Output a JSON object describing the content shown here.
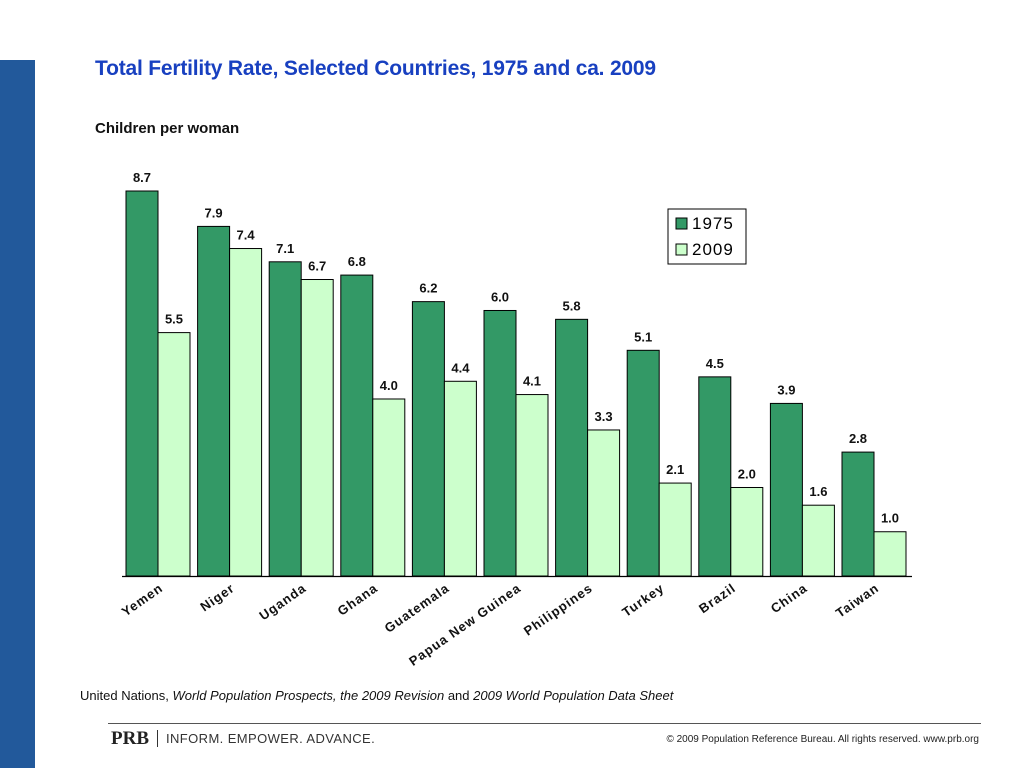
{
  "colors": {
    "side_bar": "#22599b",
    "title": "#1840c0",
    "series_1975": "#339966",
    "series_2009": "#ccffcc"
  },
  "title": "Total Fertility Rate, Selected Countries, 1975 and ca. 2009",
  "subtitle": "Children per woman",
  "chart_data": {
    "type": "bar",
    "title": "Total Fertility Rate, Selected Countries, 1975 and ca. 2009",
    "ylabel": "Children per woman",
    "xlabel": "",
    "categories": [
      "Yemen",
      "Niger",
      "Uganda",
      "Ghana",
      "Guatemala",
      "Papua New Guinea",
      "Philippines",
      "Turkey",
      "Brazil",
      "China",
      "Taiwan"
    ],
    "series": [
      {
        "name": "1975",
        "values": [
          8.7,
          7.9,
          7.1,
          6.8,
          6.2,
          6.0,
          5.8,
          5.1,
          4.5,
          3.9,
          2.8
        ]
      },
      {
        "name": "2009",
        "values": [
          5.5,
          7.4,
          6.7,
          4.0,
          4.4,
          4.1,
          3.3,
          2.1,
          2.0,
          1.6,
          1.0
        ]
      }
    ],
    "ylim": [
      0,
      8.7
    ],
    "grid": false,
    "legend": "top-right",
    "data_labels": true,
    "value_format": "one decimal"
  },
  "source": {
    "prefix": "United Nations, ",
    "italic_1": "World Population Prospects, the 2009 Revision",
    "middle": " and ",
    "italic_2": "2009 World Population Data Sheet"
  },
  "footer": {
    "logo": "PRB",
    "tagline": "INFORM. EMPOWER. ADVANCE.",
    "copyright": "© 2009 Population Reference Bureau. All rights reserved. www.prb.org"
  }
}
